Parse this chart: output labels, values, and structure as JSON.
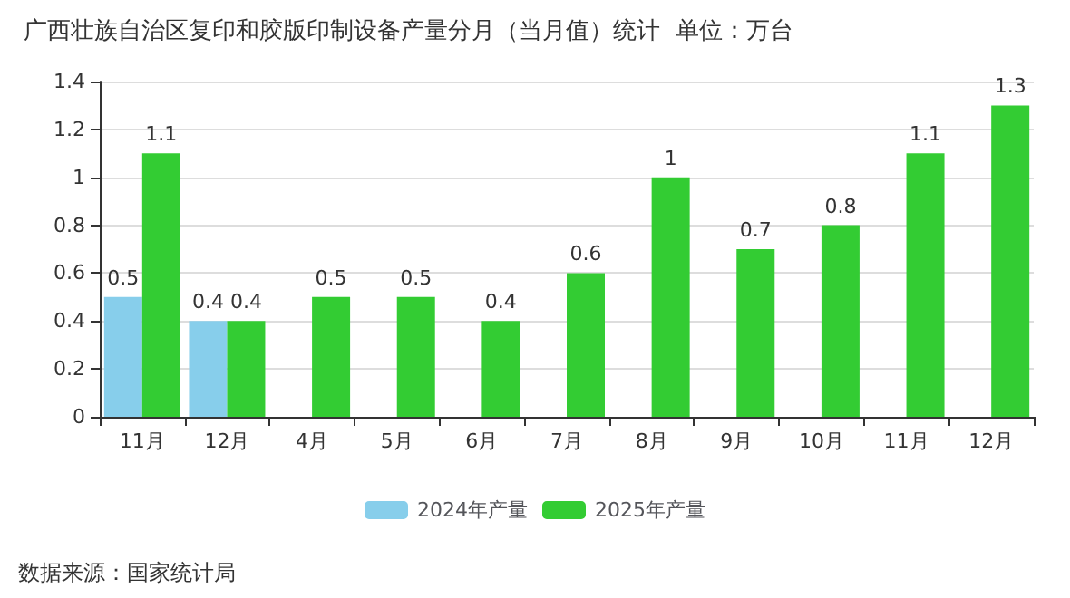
{
  "chart_data": {
    "type": "bar",
    "title": "广西壮族自治区复印和胶版印制设备产量分月（当月值）统计  单位：万台",
    "categories": [
      "11月",
      "12月",
      "4月",
      "5月",
      "6月",
      "7月",
      "8月",
      "9月",
      "10月",
      "11月",
      "12月"
    ],
    "series": [
      {
        "name": "2024年产量",
        "color": "#87ceeb",
        "values": [
          0.5,
          0.4,
          null,
          null,
          null,
          null,
          null,
          null,
          null,
          null,
          null
        ]
      },
      {
        "name": "2025年产量",
        "color": "#33cc33",
        "values": [
          1.1,
          0.4,
          0.5,
          0.5,
          0.4,
          0.6,
          1,
          0.7,
          0.8,
          1.1,
          1.3
        ]
      }
    ],
    "ylim": [
      0,
      1.4
    ],
    "yticks": [
      0,
      0.2,
      0.4,
      0.6,
      0.8,
      1,
      1.2,
      1.4
    ],
    "grid": "y",
    "legend": "bottom",
    "data_labels": true,
    "annotations": [
      "数据来源：国家统计局"
    ]
  }
}
